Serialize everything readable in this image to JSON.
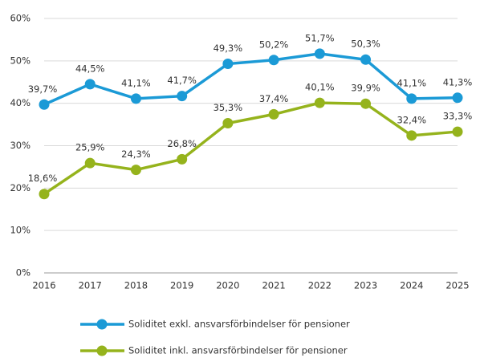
{
  "chart_data": {
    "type": "line",
    "categories": [
      "2016",
      "2017",
      "2018",
      "2019",
      "2020",
      "2021",
      "2022",
      "2023",
      "2024",
      "2025"
    ],
    "series": [
      {
        "name": "Soliditet exkl. ansvarsförbindelser för pensioner",
        "color": "#1b9ad6",
        "values": [
          39.7,
          44.5,
          41.1,
          41.7,
          49.3,
          50.2,
          51.7,
          50.3,
          41.1,
          41.3
        ],
        "value_labels": [
          "39,7%",
          "44,5%",
          "41,1%",
          "41,7%",
          "49,3%",
          "50,2%",
          "51,7%",
          "50,3%",
          "41,1%",
          "41,3%"
        ]
      },
      {
        "name": "Soliditet inkl. ansvarsförbindelser för pensioner",
        "color": "#95b31c",
        "values": [
          18.6,
          25.9,
          24.3,
          26.8,
          35.3,
          37.4,
          40.1,
          39.9,
          32.4,
          33.3
        ],
        "value_labels": [
          "18,6%",
          "25,9%",
          "24,3%",
          "26,8%",
          "35,3%",
          "37,4%",
          "40,1%",
          "39,9%",
          "32,4%",
          "33,3%"
        ]
      }
    ],
    "ylim": [
      0,
      60
    ],
    "yticks": [
      {
        "value": 0,
        "label": "0%"
      },
      {
        "value": 10,
        "label": "10%"
      },
      {
        "value": 20,
        "label": "20%"
      },
      {
        "value": 30,
        "label": "30%"
      },
      {
        "value": 40,
        "label": "40%"
      },
      {
        "value": 50,
        "label": "50%"
      },
      {
        "value": 60,
        "label": "60%"
      }
    ],
    "grid": true,
    "legend": "bottom"
  }
}
